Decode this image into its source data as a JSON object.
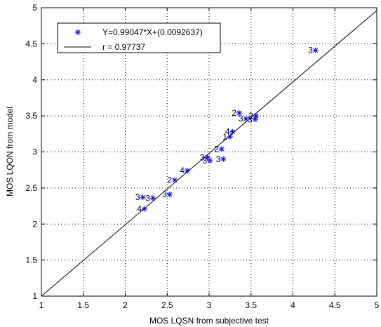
{
  "chart_data": {
    "type": "scatter",
    "title": "",
    "xlabel": "MOS LQSN from subjective test",
    "ylabel": "MOS LQON from model",
    "xlim": [
      1,
      5
    ],
    "ylim": [
      1,
      5
    ],
    "xticks": [
      "1",
      "1.5",
      "2",
      "2.5",
      "3",
      "3.5",
      "4",
      "4.5",
      "5"
    ],
    "yticks": [
      "1",
      "1.5",
      "2",
      "2.5",
      "3",
      "3.5",
      "4",
      "4.5",
      "5"
    ],
    "grid": true,
    "grid_style": "dotted",
    "legend_position": "top-left",
    "legend": [
      {
        "label": "Y=0.99047*X+(0.0092637)",
        "marker": "asterisk",
        "color": "#0000ff"
      },
      {
        "label": "r = 0.97737",
        "marker": "line",
        "color": "#000000"
      }
    ],
    "series": [
      {
        "marker": "asterisk",
        "color": "#0000ff",
        "points": [
          {
            "x": 4.27,
            "y": 4.41,
            "label": "3"
          },
          {
            "x": 3.36,
            "y": 3.54,
            "label": "2"
          },
          {
            "x": 3.56,
            "y": 3.5,
            "label": "2"
          },
          {
            "x": 3.44,
            "y": 3.46,
            "label": "3"
          },
          {
            "x": 3.55,
            "y": 3.45,
            "label": "3"
          },
          {
            "x": 3.28,
            "y": 3.28,
            "label": "4"
          },
          {
            "x": 3.25,
            "y": 3.21,
            "label": "1"
          },
          {
            "x": 3.15,
            "y": 3.04,
            "label": "2"
          },
          {
            "x": 2.98,
            "y": 2.92,
            "label": "3"
          },
          {
            "x": 3.01,
            "y": 2.88,
            "label": "3"
          },
          {
            "x": 3.17,
            "y": 2.9,
            "label": "3"
          },
          {
            "x": 2.74,
            "y": 2.74,
            "label": "4"
          },
          {
            "x": 2.59,
            "y": 2.61,
            "label": "2"
          },
          {
            "x": 2.53,
            "y": 2.41,
            "label": "3"
          },
          {
            "x": 2.21,
            "y": 2.37,
            "label": "3"
          },
          {
            "x": 2.33,
            "y": 2.36,
            "label": "3"
          },
          {
            "x": 2.23,
            "y": 2.21,
            "label": "4"
          }
        ]
      }
    ],
    "fit_line": {
      "slope": 0.99047,
      "intercept": 0.0092637,
      "color": "#000000"
    }
  }
}
